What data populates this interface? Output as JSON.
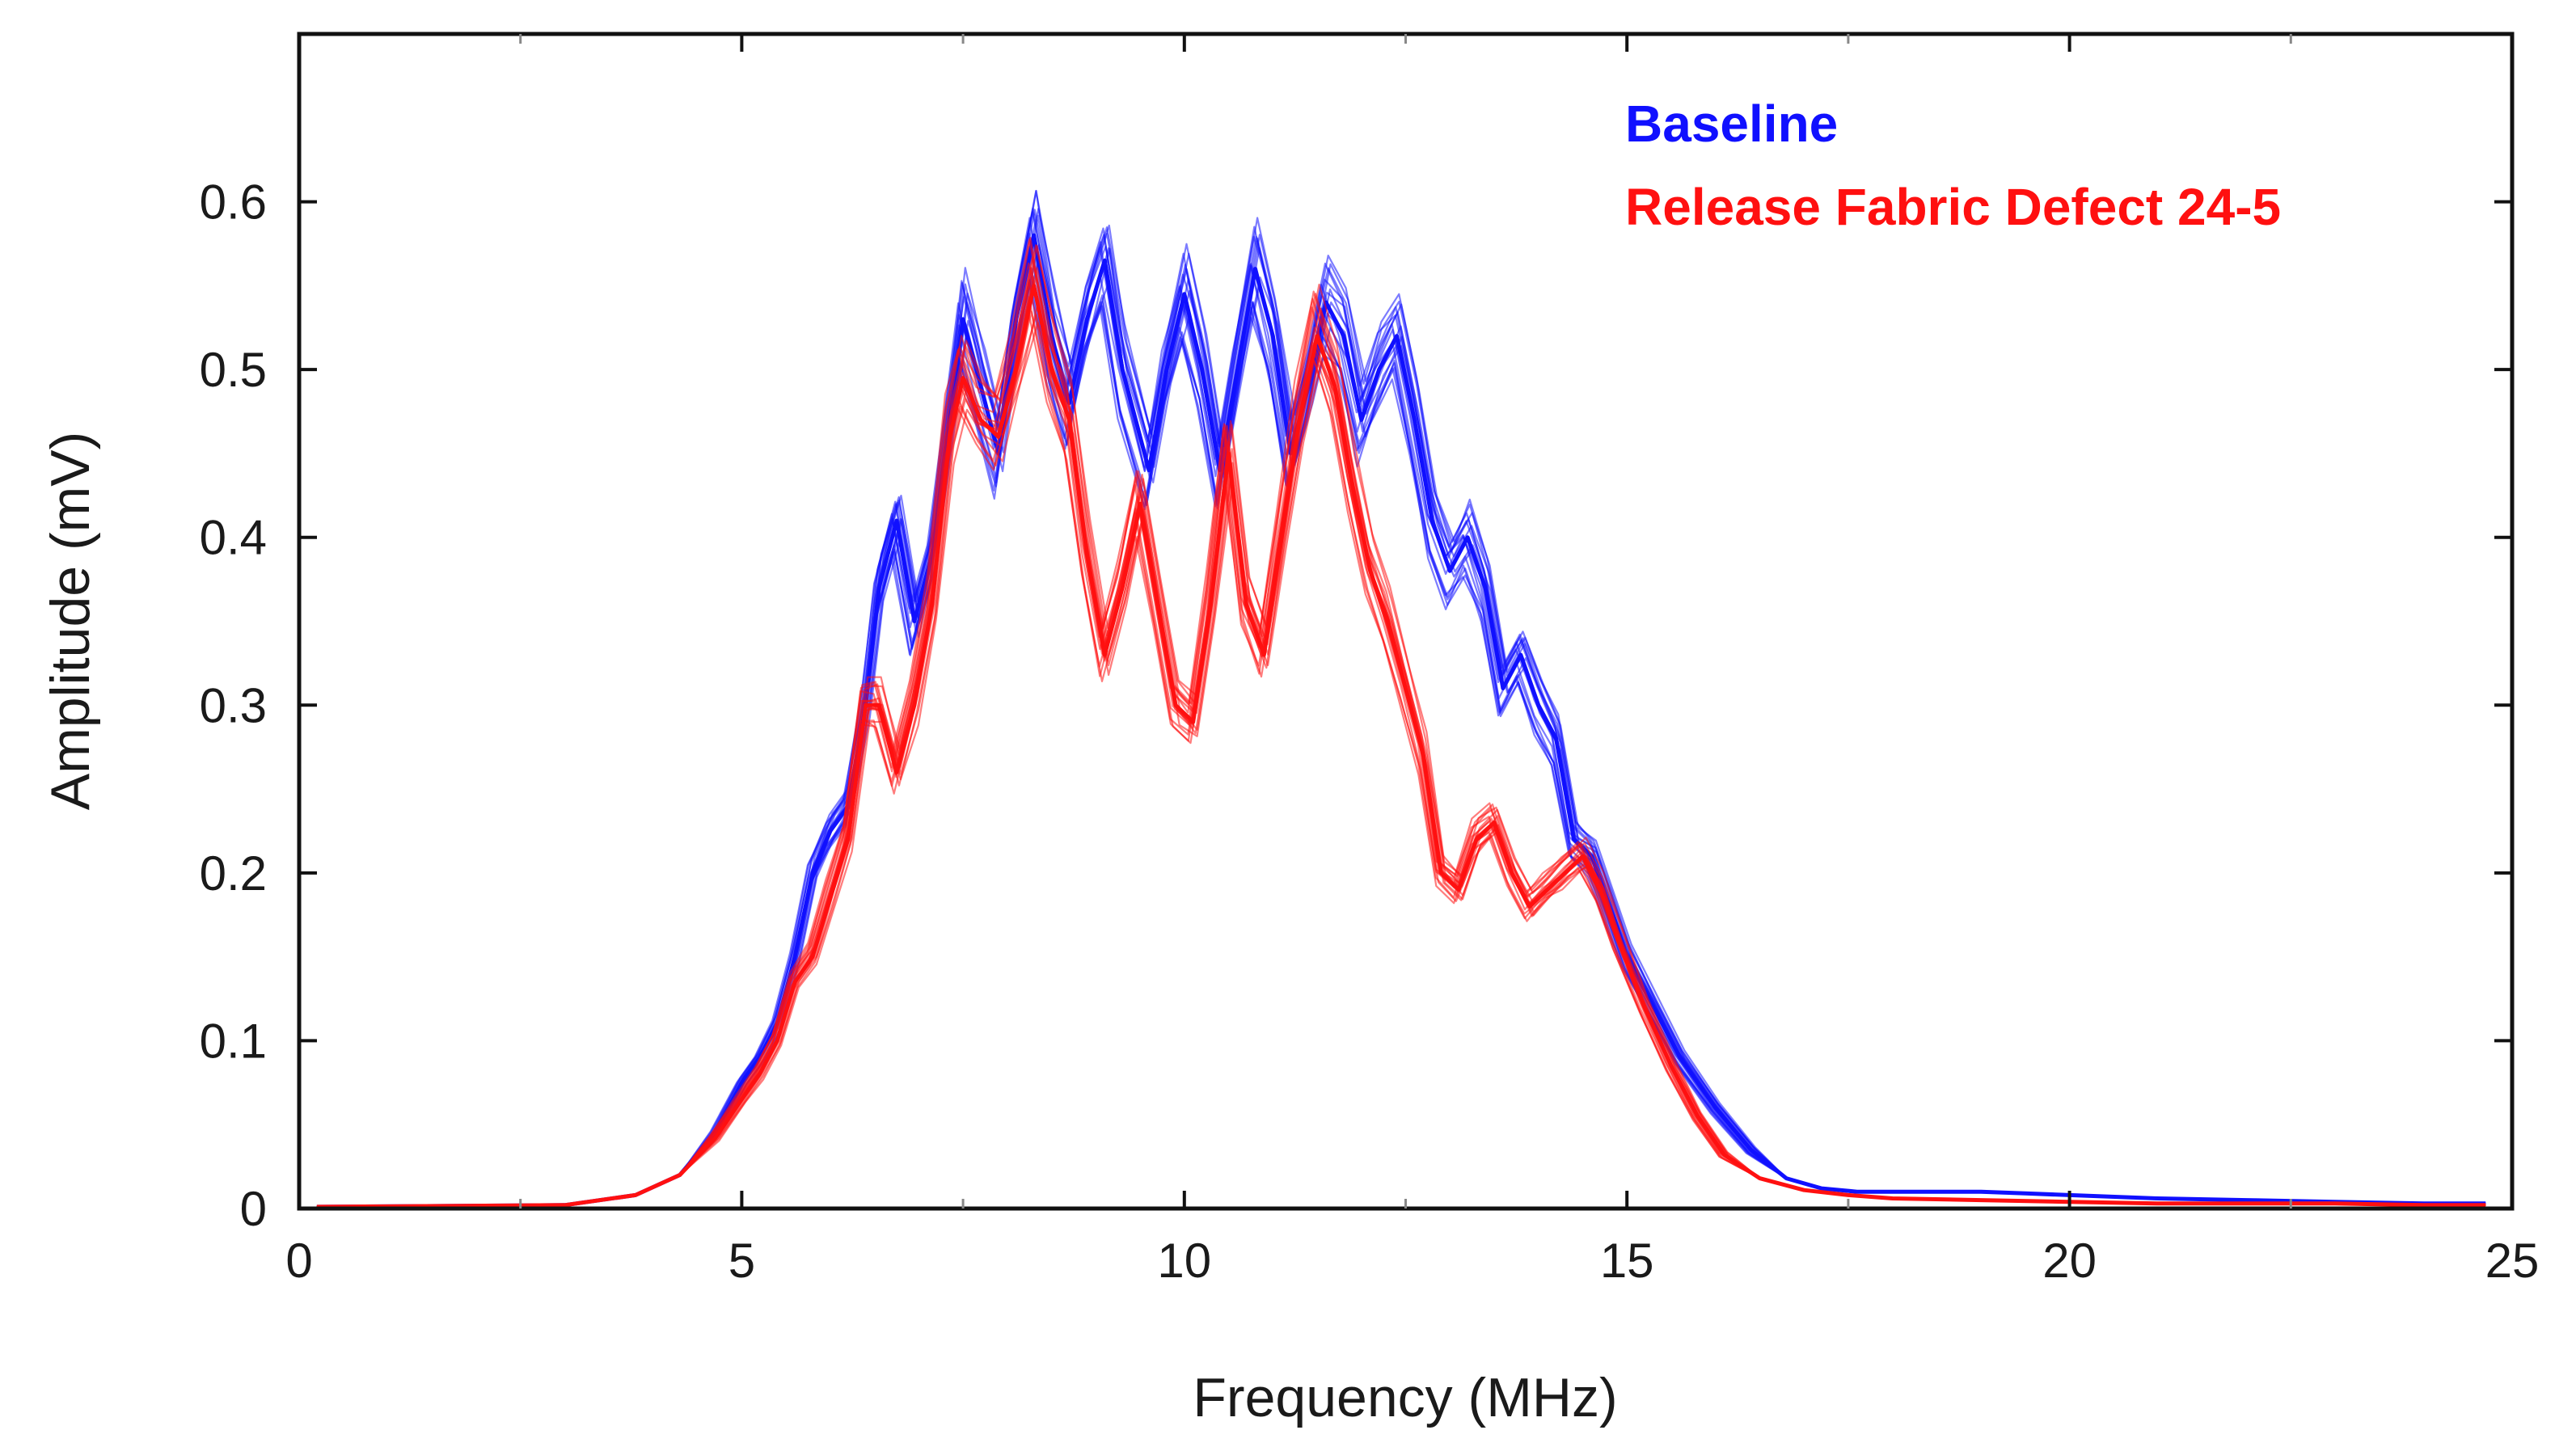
{
  "chart_data": {
    "type": "line",
    "title": "",
    "xlabel": "Frequency (MHz)",
    "ylabel": "Amplitude (mV)",
    "xlim": [
      0,
      25
    ],
    "ylim": [
      0,
      0.7
    ],
    "xticks": [
      0,
      5,
      10,
      15,
      20,
      25
    ],
    "xtick_labels": [
      "0",
      "5",
      "10",
      "15",
      "20",
      "25"
    ],
    "yticks": [
      0,
      0.1,
      0.2,
      0.3,
      0.4,
      0.5,
      0.6
    ],
    "ytick_labels": [
      "0",
      "0.1",
      "0.2",
      "0.3",
      "0.4",
      "0.5",
      "0.6"
    ],
    "grid": false,
    "legend_position": "top-right",
    "series": [
      {
        "name": "Baseline",
        "color": "#1010ff",
        "x": [
          0.2,
          3.0,
          3.8,
          4.3,
          4.7,
          5.0,
          5.2,
          5.4,
          5.6,
          5.8,
          6.0,
          6.2,
          6.4,
          6.55,
          6.75,
          6.95,
          7.15,
          7.35,
          7.5,
          7.7,
          7.9,
          8.1,
          8.3,
          8.5,
          8.7,
          8.9,
          9.1,
          9.3,
          9.6,
          9.8,
          10.0,
          10.2,
          10.4,
          10.6,
          10.8,
          11.0,
          11.2,
          11.4,
          11.6,
          11.8,
          12.0,
          12.2,
          12.4,
          12.6,
          12.8,
          13.0,
          13.2,
          13.4,
          13.6,
          13.8,
          14.0,
          14.2,
          14.4,
          14.6,
          14.8,
          15.0,
          15.3,
          15.6,
          16.0,
          16.4,
          16.8,
          17.2,
          17.6,
          18.0,
          18.5,
          19.0,
          19.5,
          20.0,
          21.0,
          22.0,
          23.0,
          24.0,
          24.7
        ],
        "y": [
          0.001,
          0.002,
          0.008,
          0.02,
          0.045,
          0.075,
          0.09,
          0.11,
          0.15,
          0.2,
          0.225,
          0.24,
          0.3,
          0.37,
          0.41,
          0.35,
          0.39,
          0.47,
          0.53,
          0.49,
          0.45,
          0.53,
          0.58,
          0.52,
          0.48,
          0.53,
          0.565,
          0.5,
          0.44,
          0.5,
          0.545,
          0.5,
          0.44,
          0.5,
          0.56,
          0.52,
          0.45,
          0.49,
          0.54,
          0.52,
          0.47,
          0.5,
          0.52,
          0.47,
          0.41,
          0.38,
          0.4,
          0.37,
          0.31,
          0.33,
          0.3,
          0.28,
          0.22,
          0.21,
          0.18,
          0.15,
          0.12,
          0.09,
          0.06,
          0.035,
          0.018,
          0.012,
          0.01,
          0.01,
          0.01,
          0.01,
          0.009,
          0.008,
          0.006,
          0.005,
          0.004,
          0.003,
          0.003
        ]
      },
      {
        "name": "Release Fabric Defect 24-5",
        "color": "#ff1010",
        "x": [
          0.2,
          3.0,
          3.8,
          4.3,
          4.7,
          5.0,
          5.2,
          5.4,
          5.6,
          5.8,
          6.0,
          6.2,
          6.4,
          6.55,
          6.75,
          6.95,
          7.15,
          7.35,
          7.5,
          7.7,
          7.9,
          8.1,
          8.3,
          8.5,
          8.7,
          8.9,
          9.1,
          9.3,
          9.5,
          9.7,
          9.9,
          10.1,
          10.3,
          10.5,
          10.7,
          10.9,
          11.1,
          11.3,
          11.5,
          11.7,
          11.9,
          12.1,
          12.3,
          12.5,
          12.7,
          12.9,
          13.1,
          13.3,
          13.5,
          13.7,
          13.9,
          14.1,
          14.3,
          14.5,
          14.7,
          14.9,
          15.2,
          15.5,
          15.8,
          16.1,
          16.5,
          17.0,
          17.5,
          18.0,
          19.0,
          20.0,
          21.0,
          22.0,
          23.0,
          24.0,
          24.7
        ],
        "y": [
          0.001,
          0.002,
          0.008,
          0.02,
          0.042,
          0.065,
          0.08,
          0.1,
          0.135,
          0.15,
          0.185,
          0.22,
          0.3,
          0.3,
          0.26,
          0.3,
          0.36,
          0.46,
          0.495,
          0.47,
          0.46,
          0.5,
          0.55,
          0.5,
          0.47,
          0.39,
          0.33,
          0.37,
          0.42,
          0.36,
          0.3,
          0.29,
          0.36,
          0.45,
          0.36,
          0.33,
          0.4,
          0.47,
          0.52,
          0.49,
          0.43,
          0.38,
          0.35,
          0.31,
          0.27,
          0.2,
          0.19,
          0.22,
          0.23,
          0.2,
          0.18,
          0.19,
          0.2,
          0.21,
          0.19,
          0.16,
          0.12,
          0.085,
          0.055,
          0.032,
          0.018,
          0.011,
          0.008,
          0.006,
          0.005,
          0.004,
          0.003,
          0.003,
          0.003,
          0.002,
          0.002
        ]
      }
    ]
  }
}
